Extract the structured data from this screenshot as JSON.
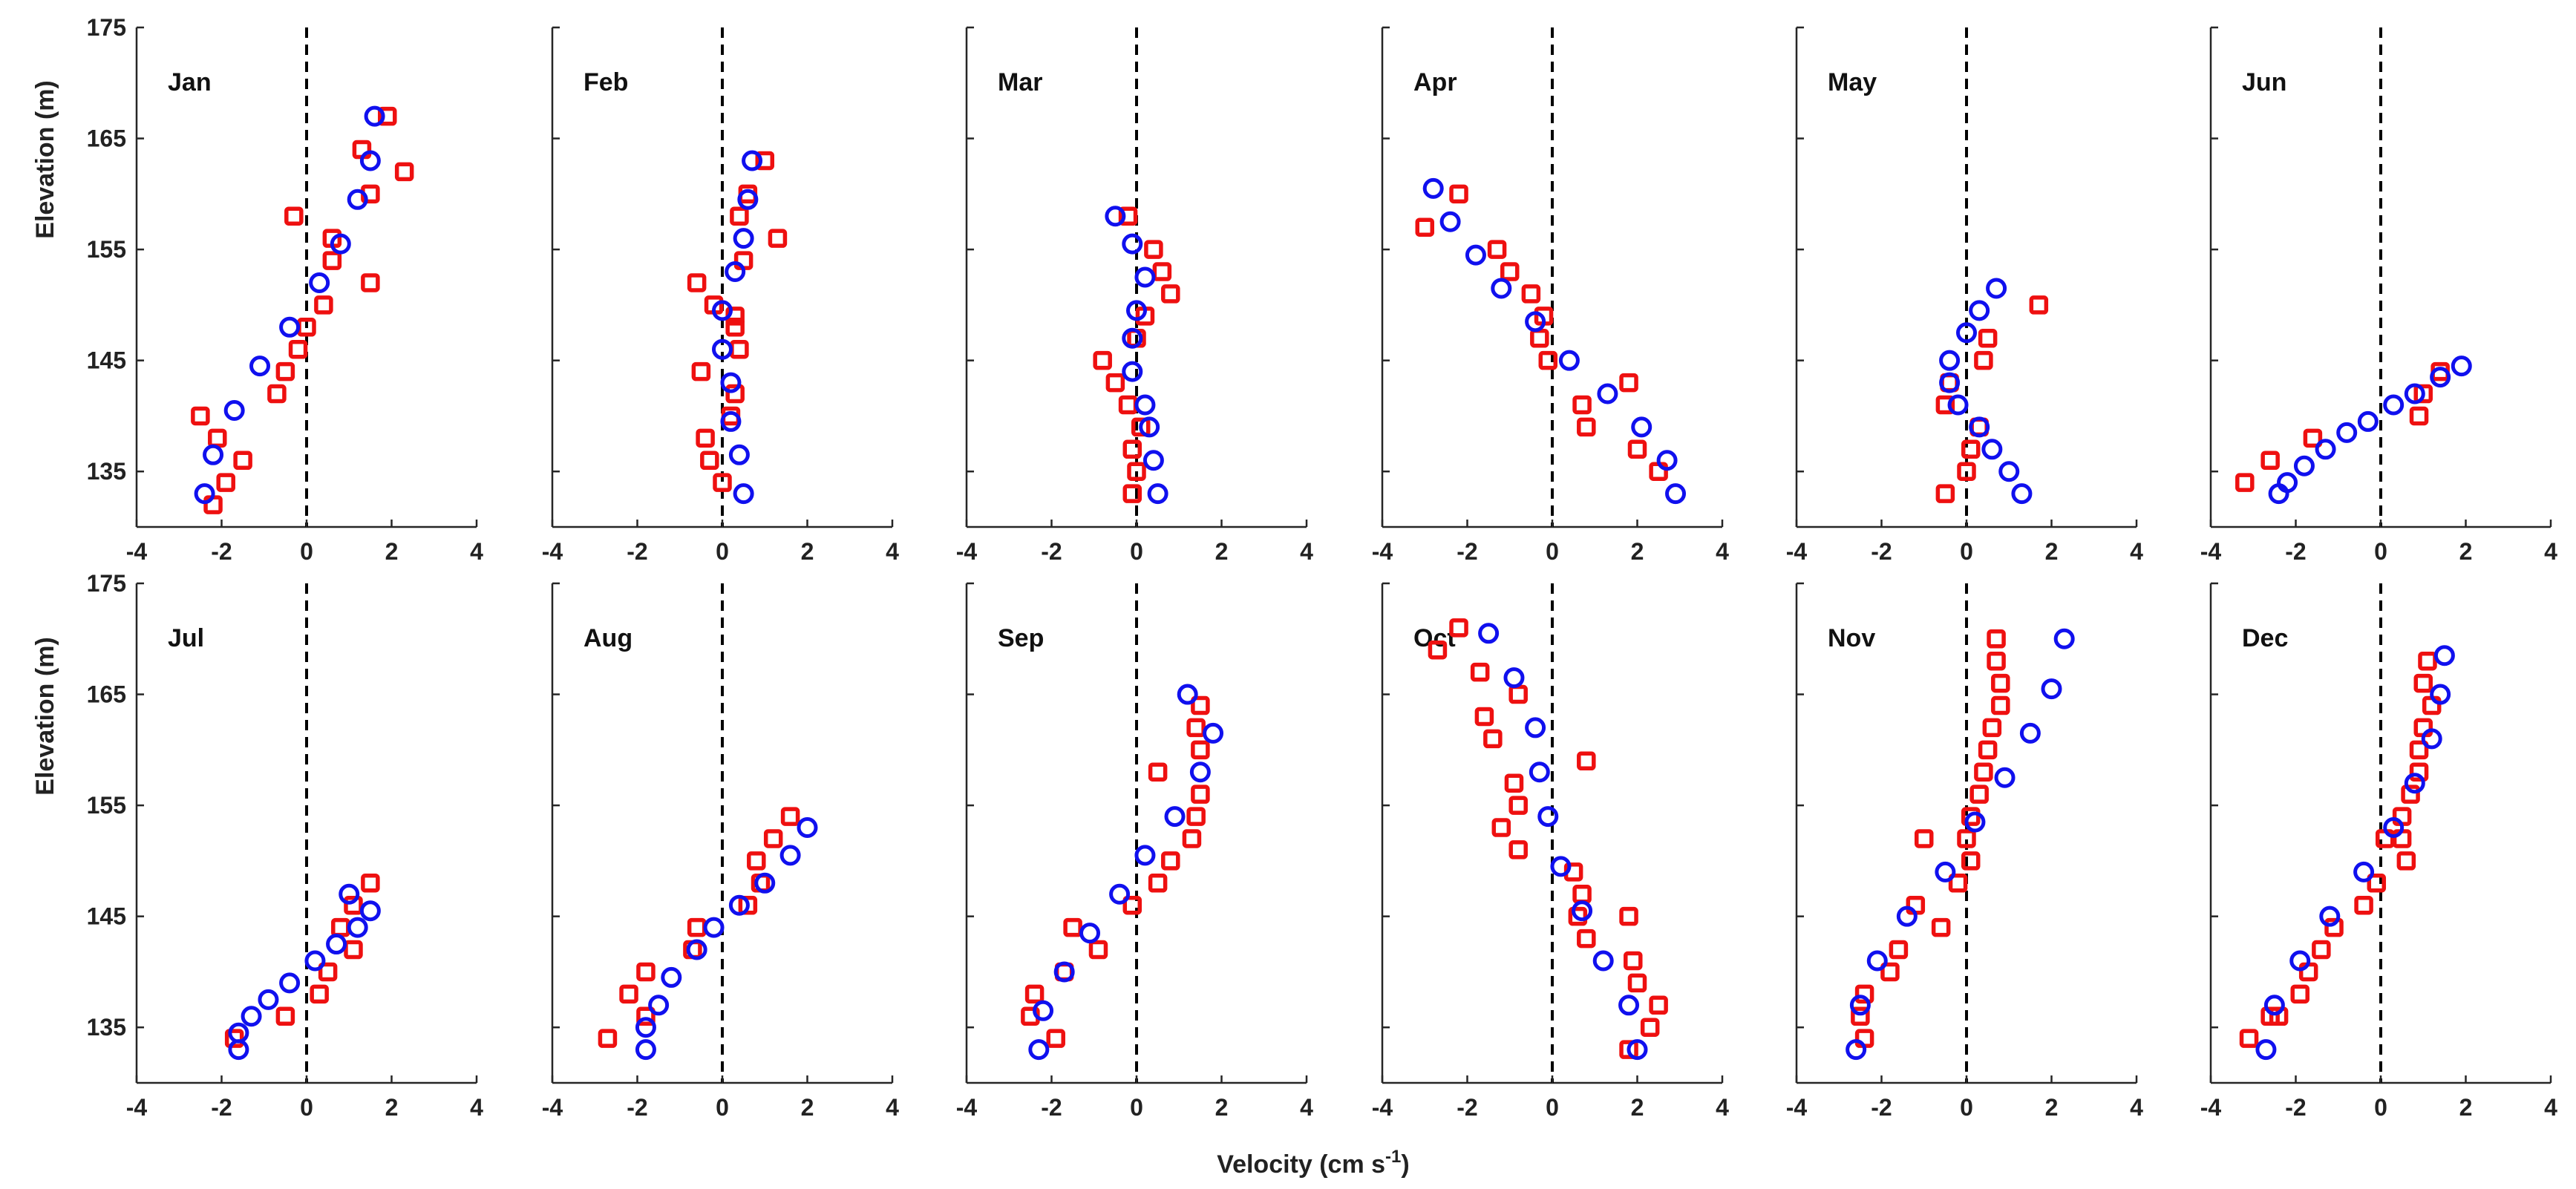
{
  "chart_data": {
    "type": "scatter",
    "xlabel": "Velocity (cm s",
    "xlabel_sup": "-1",
    "xlabel_tail": ")",
    "ylabel": "Elevation (m)",
    "xlim": [
      -4,
      4
    ],
    "ylim": [
      130,
      175
    ],
    "xticks": [
      -4,
      -2,
      0,
      2,
      4
    ],
    "yticks": [
      135,
      145,
      155,
      165,
      175
    ],
    "reference_line": {
      "x": 0,
      "style": "dashed"
    },
    "series_style": [
      {
        "name": "blue",
        "marker": "circle",
        "color": "#1010ee"
      },
      {
        "name": "red",
        "marker": "square",
        "color": "#ee1010"
      }
    ],
    "panels": [
      {
        "title": "Jan",
        "blue": [
          [
            1.6,
            167
          ],
          [
            1.5,
            163
          ],
          [
            1.2,
            159.5
          ],
          [
            0.8,
            155.5
          ],
          [
            0.3,
            152
          ],
          [
            -0.4,
            148
          ],
          [
            -1.1,
            144.5
          ],
          [
            -1.7,
            140.5
          ],
          [
            -2.2,
            136.5
          ],
          [
            -2.4,
            133
          ]
        ],
        "red": [
          [
            1.9,
            167
          ],
          [
            2.3,
            162
          ],
          [
            1.3,
            164
          ],
          [
            1.5,
            160
          ],
          [
            -0.3,
            158
          ],
          [
            0.6,
            156
          ],
          [
            0.6,
            154
          ],
          [
            1.5,
            152
          ],
          [
            0.4,
            150
          ],
          [
            0.0,
            148
          ],
          [
            -0.2,
            146
          ],
          [
            -0.5,
            144
          ],
          [
            -0.7,
            142
          ],
          [
            -2.5,
            140
          ],
          [
            -2.1,
            138
          ],
          [
            -1.5,
            136
          ],
          [
            -1.9,
            134
          ],
          [
            -2.2,
            132
          ]
        ]
      },
      {
        "title": "Feb",
        "blue": [
          [
            0.7,
            163
          ],
          [
            0.6,
            159.5
          ],
          [
            0.5,
            156
          ],
          [
            0.3,
            153
          ],
          [
            0.0,
            149.5
          ],
          [
            0.0,
            146
          ],
          [
            0.2,
            143
          ],
          [
            0.2,
            139.5
          ],
          [
            0.4,
            136.5
          ],
          [
            0.5,
            133
          ]
        ],
        "red": [
          [
            1.0,
            163
          ],
          [
            0.6,
            160
          ],
          [
            0.4,
            158
          ],
          [
            1.3,
            156
          ],
          [
            0.5,
            154
          ],
          [
            -0.6,
            152
          ],
          [
            -0.2,
            150
          ],
          [
            0.3,
            149
          ],
          [
            0.3,
            148
          ],
          [
            0.4,
            146
          ],
          [
            -0.5,
            144
          ],
          [
            0.3,
            142
          ],
          [
            0.2,
            140
          ],
          [
            -0.4,
            138
          ],
          [
            -0.3,
            136
          ],
          [
            0.0,
            134
          ]
        ]
      },
      {
        "title": "Mar",
        "blue": [
          [
            -0.5,
            158
          ],
          [
            -0.1,
            155.5
          ],
          [
            0.2,
            152.5
          ],
          [
            0.0,
            149.5
          ],
          [
            -0.1,
            147
          ],
          [
            -0.1,
            144
          ],
          [
            0.2,
            141
          ],
          [
            0.3,
            139
          ],
          [
            0.4,
            136
          ],
          [
            0.5,
            133
          ]
        ],
        "red": [
          [
            -0.2,
            158
          ],
          [
            0.4,
            155
          ],
          [
            0.6,
            153
          ],
          [
            0.8,
            151
          ],
          [
            0.2,
            149
          ],
          [
            0.0,
            147
          ],
          [
            -0.8,
            145
          ],
          [
            -0.5,
            143
          ],
          [
            -0.2,
            141
          ],
          [
            0.1,
            139
          ],
          [
            -0.1,
            137
          ],
          [
            0.0,
            135
          ],
          [
            -0.1,
            133
          ]
        ]
      },
      {
        "title": "Apr",
        "blue": [
          [
            -2.8,
            160.5
          ],
          [
            -2.4,
            157.5
          ],
          [
            -1.8,
            154.5
          ],
          [
            -1.2,
            151.5
          ],
          [
            -0.4,
            148.5
          ],
          [
            0.4,
            145
          ],
          [
            1.3,
            142
          ],
          [
            2.1,
            139
          ],
          [
            2.7,
            136
          ],
          [
            2.9,
            133
          ]
        ],
        "red": [
          [
            -2.2,
            160
          ],
          [
            -3.0,
            157
          ],
          [
            -1.3,
            155
          ],
          [
            -1.0,
            153
          ],
          [
            -0.5,
            151
          ],
          [
            -0.2,
            149
          ],
          [
            -0.3,
            147
          ],
          [
            -0.1,
            145
          ],
          [
            1.8,
            143
          ],
          [
            0.7,
            141
          ],
          [
            0.8,
            139
          ],
          [
            2.0,
            137
          ],
          [
            2.5,
            135
          ]
        ]
      },
      {
        "title": "May",
        "blue": [
          [
            0.7,
            151.5
          ],
          [
            0.3,
            149.5
          ],
          [
            0.0,
            147.5
          ],
          [
            -0.4,
            145
          ],
          [
            -0.4,
            143
          ],
          [
            -0.2,
            141
          ],
          [
            0.3,
            139
          ],
          [
            0.6,
            137
          ],
          [
            1.0,
            135
          ],
          [
            1.3,
            133
          ]
        ],
        "red": [
          [
            1.7,
            150
          ],
          [
            0.5,
            147
          ],
          [
            0.4,
            145
          ],
          [
            -0.4,
            143
          ],
          [
            -0.5,
            141
          ],
          [
            0.3,
            139
          ],
          [
            0.1,
            137
          ],
          [
            0.0,
            135
          ],
          [
            -0.5,
            133
          ]
        ]
      },
      {
        "title": "Jun",
        "blue": [
          [
            1.9,
            144.5
          ],
          [
            1.4,
            143.5
          ],
          [
            0.8,
            142
          ],
          [
            0.3,
            141
          ],
          [
            -0.3,
            139.5
          ],
          [
            -0.8,
            138.5
          ],
          [
            -1.3,
            137
          ],
          [
            -1.8,
            135.5
          ],
          [
            -2.2,
            134
          ],
          [
            -2.4,
            133
          ]
        ],
        "red": [
          [
            1.4,
            144
          ],
          [
            1.0,
            142
          ],
          [
            0.9,
            140
          ],
          [
            -1.6,
            138
          ],
          [
            -2.6,
            136
          ],
          [
            -3.2,
            134
          ]
        ]
      },
      {
        "title": "Jul",
        "blue": [
          [
            1.0,
            147
          ],
          [
            1.5,
            145.5
          ],
          [
            1.2,
            144
          ],
          [
            0.7,
            142.5
          ],
          [
            0.2,
            141
          ],
          [
            -0.4,
            139
          ],
          [
            -0.9,
            137.5
          ],
          [
            -1.3,
            136
          ],
          [
            -1.6,
            134.5
          ],
          [
            -1.6,
            133
          ]
        ],
        "red": [
          [
            1.5,
            148
          ],
          [
            1.1,
            146
          ],
          [
            0.8,
            144
          ],
          [
            1.1,
            142
          ],
          [
            0.5,
            140
          ],
          [
            0.3,
            138
          ],
          [
            -0.5,
            136
          ],
          [
            -1.7,
            134
          ]
        ]
      },
      {
        "title": "Aug",
        "blue": [
          [
            2.0,
            153
          ],
          [
            1.6,
            150.5
          ],
          [
            1.0,
            148
          ],
          [
            0.4,
            146
          ],
          [
            -0.2,
            144
          ],
          [
            -0.6,
            142
          ],
          [
            -1.2,
            139.5
          ],
          [
            -1.5,
            137
          ],
          [
            -1.8,
            135
          ],
          [
            -1.8,
            133
          ]
        ],
        "red": [
          [
            1.6,
            154
          ],
          [
            1.2,
            152
          ],
          [
            0.8,
            150
          ],
          [
            0.9,
            148
          ],
          [
            0.6,
            146
          ],
          [
            -0.6,
            144
          ],
          [
            -0.7,
            142
          ],
          [
            -1.8,
            140
          ],
          [
            -2.2,
            138
          ],
          [
            -1.8,
            136
          ],
          [
            -2.7,
            134
          ]
        ]
      },
      {
        "title": "Sep",
        "blue": [
          [
            1.2,
            165
          ],
          [
            1.8,
            161.5
          ],
          [
            1.5,
            158
          ],
          [
            0.9,
            154
          ],
          [
            0.2,
            150.5
          ],
          [
            -0.4,
            147
          ],
          [
            -1.1,
            143.5
          ],
          [
            -1.7,
            140
          ],
          [
            -2.2,
            136.5
          ],
          [
            -2.3,
            133
          ]
        ],
        "red": [
          [
            1.5,
            164
          ],
          [
            1.4,
            162
          ],
          [
            1.5,
            160
          ],
          [
            0.5,
            158
          ],
          [
            1.5,
            156
          ],
          [
            1.4,
            154
          ],
          [
            1.3,
            152
          ],
          [
            0.8,
            150
          ],
          [
            0.5,
            148
          ],
          [
            -0.1,
            146
          ],
          [
            -1.5,
            144
          ],
          [
            -0.9,
            142
          ],
          [
            -1.7,
            140
          ],
          [
            -2.4,
            138
          ],
          [
            -2.5,
            136
          ],
          [
            -1.9,
            134
          ]
        ]
      },
      {
        "title": "Oct",
        "blue": [
          [
            -1.5,
            170.5
          ],
          [
            -0.9,
            166.5
          ],
          [
            -0.4,
            162
          ],
          [
            -0.3,
            158
          ],
          [
            -0.1,
            154
          ],
          [
            0.2,
            149.5
          ],
          [
            0.7,
            145.5
          ],
          [
            1.2,
            141
          ],
          [
            1.8,
            137
          ],
          [
            2.0,
            133
          ]
        ],
        "red": [
          [
            -2.2,
            171
          ],
          [
            -2.7,
            169
          ],
          [
            -1.7,
            167
          ],
          [
            -0.8,
            165
          ],
          [
            -1.6,
            163
          ],
          [
            -1.4,
            161
          ],
          [
            0.8,
            159
          ],
          [
            -0.9,
            157
          ],
          [
            -0.8,
            155
          ],
          [
            -1.2,
            153
          ],
          [
            -0.8,
            151
          ],
          [
            0.5,
            149
          ],
          [
            0.7,
            147
          ],
          [
            0.6,
            145
          ],
          [
            1.8,
            145
          ],
          [
            0.8,
            143
          ],
          [
            1.9,
            141
          ],
          [
            2.0,
            139
          ],
          [
            2.5,
            137
          ],
          [
            2.3,
            135
          ],
          [
            1.8,
            133
          ]
        ]
      },
      {
        "title": "Nov",
        "blue": [
          [
            2.3,
            170
          ],
          [
            2.0,
            165.5
          ],
          [
            1.5,
            161.5
          ],
          [
            0.9,
            157.5
          ],
          [
            0.2,
            153.5
          ],
          [
            -0.5,
            149
          ],
          [
            -1.4,
            145
          ],
          [
            -2.1,
            141
          ],
          [
            -2.5,
            137
          ],
          [
            -2.6,
            133
          ]
        ],
        "red": [
          [
            0.7,
            170
          ],
          [
            0.7,
            168
          ],
          [
            0.8,
            166
          ],
          [
            0.8,
            164
          ],
          [
            0.6,
            162
          ],
          [
            0.5,
            160
          ],
          [
            0.4,
            158
          ],
          [
            0.3,
            156
          ],
          [
            0.1,
            154
          ],
          [
            0.0,
            152
          ],
          [
            -1.0,
            152
          ],
          [
            0.1,
            150
          ],
          [
            -0.2,
            148
          ],
          [
            -0.6,
            144
          ],
          [
            -1.2,
            146
          ],
          [
            -1.6,
            142
          ],
          [
            -1.8,
            140
          ],
          [
            -2.4,
            138
          ],
          [
            -2.5,
            136
          ],
          [
            -2.4,
            134
          ]
        ]
      },
      {
        "title": "Dec",
        "blue": [
          [
            1.5,
            168.5
          ],
          [
            1.4,
            165
          ],
          [
            1.2,
            161
          ],
          [
            0.8,
            157
          ],
          [
            0.3,
            153
          ],
          [
            -0.4,
            149
          ],
          [
            -1.2,
            145
          ],
          [
            -1.9,
            141
          ],
          [
            -2.5,
            137
          ],
          [
            -2.7,
            133
          ]
        ],
        "red": [
          [
            1.1,
            168
          ],
          [
            1.0,
            166
          ],
          [
            1.2,
            164
          ],
          [
            1.0,
            162
          ],
          [
            0.9,
            160
          ],
          [
            0.9,
            158
          ],
          [
            0.7,
            156
          ],
          [
            0.5,
            154
          ],
          [
            0.5,
            152
          ],
          [
            0.1,
            152
          ],
          [
            0.6,
            150
          ],
          [
            -0.1,
            148
          ],
          [
            -0.4,
            146
          ],
          [
            -1.1,
            144
          ],
          [
            -1.4,
            142
          ],
          [
            -1.7,
            140
          ],
          [
            -1.9,
            138
          ],
          [
            -2.4,
            136
          ],
          [
            -2.6,
            136
          ],
          [
            -3.1,
            134
          ]
        ]
      }
    ]
  }
}
